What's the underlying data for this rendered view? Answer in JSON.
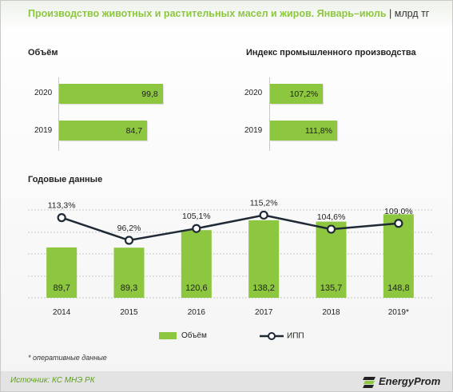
{
  "header": {
    "title": "Производство животных и растительных масел и жиров. Январь–июль",
    "unit": "| млрд тг"
  },
  "volume_panel": {
    "title": "Объём"
  },
  "ipp_panel": {
    "title": "Индекс промышленного производства"
  },
  "annual_panel": {
    "title": "Годовые данные"
  },
  "legend": {
    "bars": "Объём",
    "line": "ИПП"
  },
  "note": "* оперативные данные",
  "footer": {
    "source": "Источник: КС МНЭ РК",
    "logo_text": "EnergyProm"
  },
  "colors": {
    "accent": "#8dc63f",
    "line": "#1f2a36",
    "source": "#5d9e1f"
  },
  "chart_data": [
    {
      "type": "bar",
      "orientation": "horizontal",
      "title": "Объём",
      "categories": [
        "2020",
        "2019"
      ],
      "values": [
        99.8,
        84.7
      ],
      "value_labels": [
        "99,8",
        "84,7"
      ]
    },
    {
      "type": "bar",
      "orientation": "horizontal",
      "title": "Индекс промышленного производства",
      "categories": [
        "2020",
        "2019"
      ],
      "values": [
        107.2,
        111.8
      ],
      "value_labels": [
        "107,2%",
        "111,8%"
      ]
    },
    {
      "type": "bar",
      "title": "Годовые данные",
      "categories": [
        "2014",
        "2015",
        "2016",
        "2017",
        "2018",
        "2019*"
      ],
      "series": [
        {
          "name": "Объём",
          "type": "bar",
          "values": [
            89.7,
            89.3,
            120.6,
            138.2,
            135.7,
            148.8
          ],
          "labels": [
            "89,7",
            "89,3",
            "120,6",
            "138,2",
            "135,7",
            "148,8"
          ]
        },
        {
          "name": "ИПП",
          "type": "line",
          "values": [
            113.3,
            96.2,
            105.1,
            115.2,
            104.6,
            109.0
          ],
          "labels": [
            "113,3%",
            "96,2%",
            "105,1%",
            "115,2%",
            "104,6%",
            "109,0%"
          ]
        }
      ],
      "grid": true,
      "legend": "bottom"
    }
  ]
}
